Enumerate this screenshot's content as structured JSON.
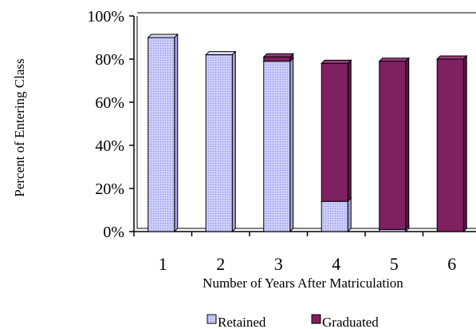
{
  "chart_data": {
    "type": "bar",
    "stacked": true,
    "style": "3d",
    "categories": [
      "1",
      "2",
      "3",
      "4",
      "5",
      "6"
    ],
    "series": [
      {
        "name": "Retained",
        "values": [
          90,
          82,
          79,
          14,
          1,
          0
        ],
        "color": "#ccccff",
        "pattern": "dotted"
      },
      {
        "name": "Graduated",
        "values": [
          0,
          0,
          2,
          64,
          78,
          80
        ],
        "color": "#7f2060"
      }
    ],
    "title": "",
    "xlabel": "Number of Years After Matriculation",
    "ylabel": "Percent of Entering Class",
    "ylim": [
      0,
      100
    ],
    "yticks": [
      "0%",
      "20%",
      "40%",
      "60%",
      "80%",
      "100%"
    ],
    "grid": false,
    "legend": "bottom-center"
  }
}
